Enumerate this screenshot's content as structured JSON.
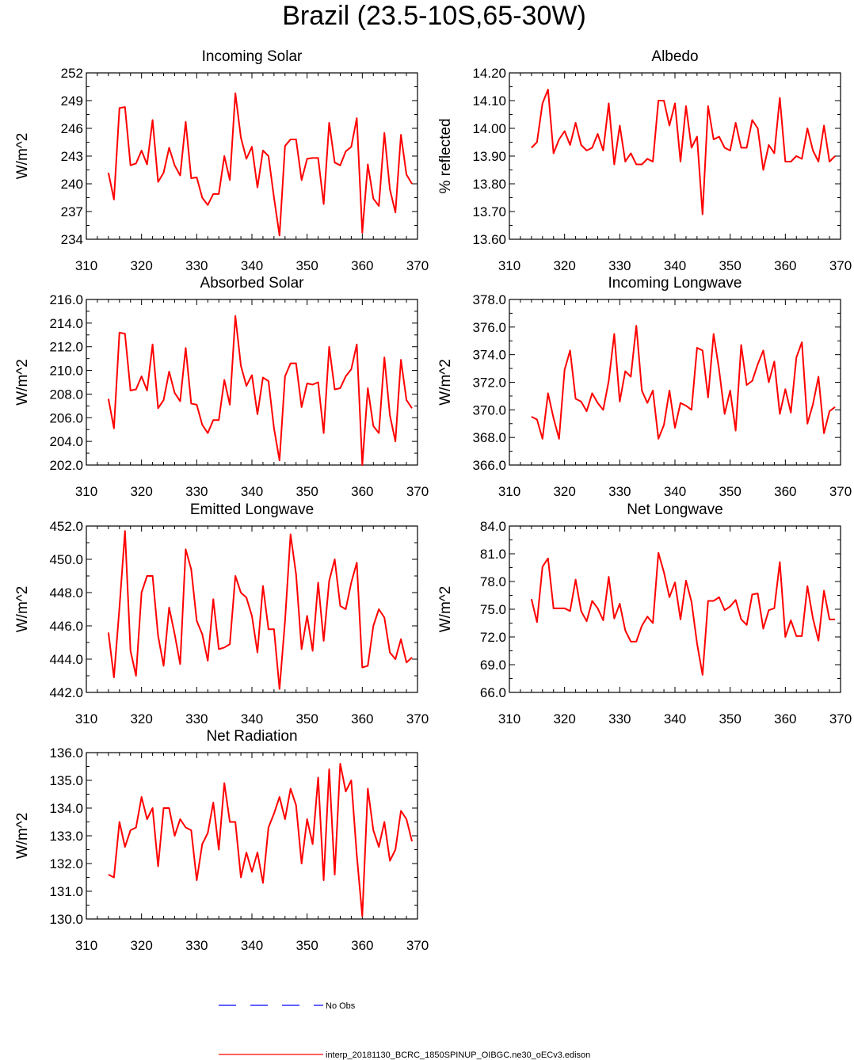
{
  "figure": {
    "title": "Brazil (23.5-10S,65-30W)",
    "series_color": "#ff0000",
    "obs_color": "#0000ff"
  },
  "legend": {
    "obs_label": "No Obs",
    "model_label": "interp_20181130_BCRC_1850SPINUP_OIBGC.ne30_oECv3.edison"
  },
  "chart_data": [
    {
      "type": "line",
      "title": "Incoming Solar",
      "ylabel": "W/m^2",
      "xlim": [
        310,
        370
      ],
      "ylim": [
        234,
        252
      ],
      "xticks": [
        310,
        320,
        330,
        340,
        350,
        360,
        370
      ],
      "yticks": [
        234,
        237,
        240,
        243,
        246,
        249,
        252
      ],
      "ytick_labels": [
        "234",
        "237",
        "240",
        "243",
        "246",
        "249",
        "252"
      ],
      "x_start": 314,
      "values": [
        241.2,
        238.3,
        248.2,
        248.3,
        242.0,
        242.2,
        243.6,
        242.1,
        246.9,
        240.2,
        241.2,
        243.9,
        242.0,
        240.9,
        246.7,
        240.6,
        240.7,
        238.5,
        237.7,
        238.9,
        238.9,
        243.0,
        240.4,
        249.8,
        245.0,
        242.7,
        244.0,
        239.6,
        243.6,
        243.0,
        238.5,
        234.4,
        244.1,
        244.8,
        244.8,
        240.4,
        242.7,
        242.8,
        242.8,
        237.8,
        246.6,
        242.3,
        242.0,
        243.5,
        244.0,
        247.1,
        234.7,
        242.1,
        238.4,
        237.6,
        245.5,
        239.4,
        236.9,
        245.3,
        241.0,
        240.0
      ]
    },
    {
      "type": "line",
      "title": "Albedo",
      "ylabel": "% reflected",
      "xlim": [
        310,
        370
      ],
      "ylim": [
        13.6,
        14.2
      ],
      "xticks": [
        310,
        320,
        330,
        340,
        350,
        360,
        370
      ],
      "yticks": [
        13.6,
        13.7,
        13.8,
        13.9,
        14.0,
        14.1,
        14.2
      ],
      "ytick_labels": [
        "13.60",
        "13.70",
        "13.80",
        "13.90",
        "14.00",
        "14.10",
        "14.20"
      ],
      "x_start": 314,
      "values": [
        13.93,
        13.95,
        14.09,
        14.14,
        13.91,
        13.96,
        13.99,
        13.94,
        14.02,
        13.94,
        13.92,
        13.93,
        13.98,
        13.92,
        14.09,
        13.87,
        14.01,
        13.88,
        13.91,
        13.87,
        13.87,
        13.89,
        13.88,
        14.1,
        14.1,
        14.01,
        14.09,
        13.88,
        14.08,
        13.93,
        13.97,
        13.69,
        14.08,
        13.96,
        13.97,
        13.93,
        13.92,
        14.02,
        13.93,
        13.93,
        14.03,
        14.0,
        13.85,
        13.94,
        13.91,
        14.11,
        13.88,
        13.88,
        13.9,
        13.89,
        14.0,
        13.92,
        13.88,
        14.01,
        13.88,
        13.9
      ]
    },
    {
      "type": "line",
      "title": "Absorbed Solar",
      "ylabel": "W/m^2",
      "xlim": [
        310,
        370
      ],
      "ylim": [
        202.0,
        216.0
      ],
      "xticks": [
        310,
        320,
        330,
        340,
        350,
        360,
        370
      ],
      "yticks": [
        202,
        204,
        206,
        208,
        210,
        212,
        214,
        216
      ],
      "ytick_labels": [
        "202.0",
        "204.0",
        "206.0",
        "208.0",
        "210.0",
        "212.0",
        "214.0",
        "216.0"
      ],
      "x_start": 314,
      "values": [
        207.6,
        205.1,
        213.2,
        213.1,
        208.3,
        208.4,
        209.5,
        208.3,
        212.2,
        206.8,
        207.5,
        209.9,
        208.1,
        207.4,
        211.9,
        207.2,
        207.1,
        205.4,
        204.7,
        205.8,
        205.8,
        209.2,
        207.1,
        214.6,
        210.4,
        208.7,
        209.6,
        206.3,
        209.4,
        209.1,
        205.1,
        202.4,
        209.5,
        210.6,
        210.6,
        206.9,
        208.9,
        208.8,
        209.0,
        204.7,
        212.0,
        208.4,
        208.5,
        209.5,
        210.1,
        212.2,
        202.0,
        208.5,
        205.3,
        204.7,
        211.1,
        206.2,
        204.0,
        210.9,
        207.5,
        206.8
      ]
    },
    {
      "type": "line",
      "title": "Incoming Longwave",
      "ylabel": "W/m^2",
      "xlim": [
        310,
        370
      ],
      "ylim": [
        366.0,
        378.0
      ],
      "xticks": [
        310,
        320,
        330,
        340,
        350,
        360,
        370
      ],
      "yticks": [
        366,
        368,
        370,
        372,
        374,
        376,
        378
      ],
      "ytick_labels": [
        "366.0",
        "368.0",
        "370.0",
        "372.0",
        "374.0",
        "376.0",
        "378.0"
      ],
      "x_start": 314,
      "values": [
        369.5,
        369.3,
        367.9,
        371.2,
        369.4,
        367.9,
        372.9,
        374.3,
        370.8,
        370.6,
        369.9,
        371.2,
        370.5,
        370.0,
        372.1,
        375.5,
        370.6,
        372.8,
        372.4,
        376.1,
        371.4,
        370.5,
        371.4,
        367.9,
        368.9,
        371.4,
        368.7,
        370.5,
        370.3,
        370.0,
        374.5,
        374.3,
        370.9,
        375.5,
        372.9,
        369.7,
        371.4,
        368.5,
        374.7,
        371.8,
        372.1,
        373.3,
        374.3,
        372.0,
        373.5,
        369.7,
        371.5,
        369.8,
        373.8,
        374.9,
        369.0,
        370.4,
        372.4,
        368.3,
        369.9,
        370.2
      ]
    },
    {
      "type": "line",
      "title": "Emitted Longwave",
      "ylabel": "W/m^2",
      "xlim": [
        310,
        370
      ],
      "ylim": [
        442.0,
        452.0
      ],
      "xticks": [
        310,
        320,
        330,
        340,
        350,
        360,
        370
      ],
      "yticks": [
        442,
        444,
        446,
        448,
        450,
        452
      ],
      "ytick_labels": [
        "442.0",
        "444.0",
        "446.0",
        "448.0",
        "450.0",
        "452.0"
      ],
      "x_start": 314,
      "values": [
        445.6,
        442.9,
        447.1,
        451.7,
        444.5,
        443.0,
        448.0,
        449.0,
        449.0,
        445.4,
        443.6,
        447.1,
        445.5,
        443.7,
        450.6,
        449.4,
        446.3,
        445.5,
        443.9,
        447.6,
        444.6,
        444.7,
        444.9,
        449.0,
        448.0,
        447.7,
        446.6,
        444.4,
        448.4,
        445.8,
        445.8,
        442.2,
        446.3,
        451.5,
        449.1,
        444.6,
        446.6,
        444.5,
        448.6,
        445.1,
        448.7,
        450.0,
        447.2,
        447.0,
        448.6,
        449.8,
        443.5,
        443.6,
        446.0,
        447.0,
        446.5,
        444.4,
        444.0,
        445.2,
        443.8,
        444.1
      ]
    },
    {
      "type": "line",
      "title": "Net Longwave",
      "ylabel": "W/m^2",
      "xlim": [
        310,
        370
      ],
      "ylim": [
        66.0,
        84.0
      ],
      "xticks": [
        310,
        320,
        330,
        340,
        350,
        360,
        370
      ],
      "yticks": [
        66,
        69,
        72,
        75,
        78,
        81,
        84
      ],
      "ytick_labels": [
        "66.0",
        "69.0",
        "72.0",
        "75.0",
        "78.0",
        "81.0",
        "84.0"
      ],
      "x_start": 314,
      "values": [
        76.1,
        73.6,
        79.6,
        80.5,
        75.1,
        75.1,
        75.1,
        74.8,
        78.2,
        74.8,
        73.7,
        75.9,
        75.1,
        73.8,
        78.5,
        74.0,
        75.6,
        72.7,
        71.5,
        71.5,
        73.2,
        74.2,
        73.5,
        81.1,
        79.0,
        76.3,
        77.9,
        73.9,
        78.1,
        75.8,
        71.3,
        67.9,
        75.9,
        75.9,
        76.3,
        74.9,
        75.3,
        76.0,
        73.9,
        73.3,
        76.6,
        76.7,
        72.9,
        74.9,
        75.1,
        80.1,
        72.0,
        73.8,
        72.1,
        72.1,
        77.5,
        74.0,
        71.6,
        77.0,
        73.9,
        73.9
      ]
    },
    {
      "type": "line",
      "title": "Net Radiation",
      "ylabel": "W/m^2",
      "xlim": [
        310,
        370
      ],
      "ylim": [
        130.0,
        136.0
      ],
      "xticks": [
        310,
        320,
        330,
        340,
        350,
        360,
        370
      ],
      "yticks": [
        130,
        131,
        132,
        133,
        134,
        135,
        136
      ],
      "ytick_labels": [
        "130.0",
        "131.0",
        "132.0",
        "133.0",
        "134.0",
        "135.0",
        "136.0"
      ],
      "x_start": 314,
      "values": [
        131.6,
        131.5,
        133.5,
        132.6,
        133.2,
        133.3,
        134.4,
        133.6,
        134.0,
        131.9,
        134.0,
        134.0,
        133.0,
        133.6,
        133.3,
        133.2,
        131.4,
        132.7,
        133.1,
        134.2,
        132.5,
        134.9,
        133.5,
        133.5,
        131.5,
        132.4,
        131.7,
        132.4,
        131.3,
        133.3,
        133.8,
        134.4,
        133.6,
        134.7,
        134.1,
        132.0,
        133.6,
        132.7,
        135.1,
        131.4,
        135.4,
        131.6,
        135.6,
        134.6,
        135.0,
        132.3,
        130.1,
        134.7,
        133.2,
        132.6,
        133.5,
        132.1,
        132.5,
        133.9,
        133.6,
        132.8
      ]
    }
  ]
}
